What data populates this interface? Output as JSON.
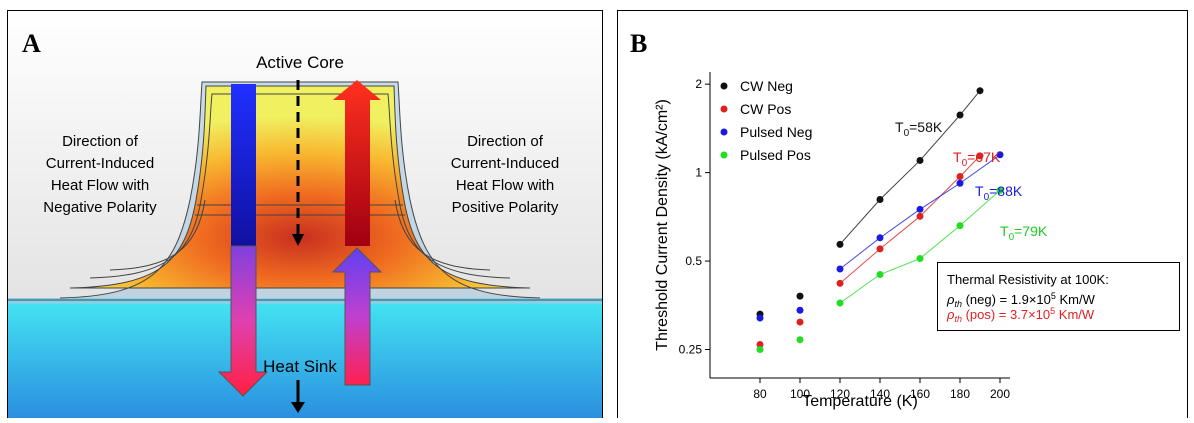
{
  "panel_a": {
    "label": "A",
    "top_label": "Active Core",
    "left_text": [
      "Direction of",
      "Current-Induced",
      "Heat Flow with",
      "Negative Polarity"
    ],
    "right_text": [
      "Direction of",
      "Current-Induced",
      "Heat Flow with",
      "Positive Polarity"
    ],
    "bottom_label": "Heat Sink"
  },
  "chart_data": {
    "type": "scatter",
    "panel_label": "B",
    "x_label": "Temperature (K)",
    "y_label": "Threshold Current Density (kA/cm²)",
    "xlim": [
      55,
      205
    ],
    "xticks": [
      80,
      100,
      120,
      140,
      160,
      180,
      200
    ],
    "ylim": [
      0.2,
      2.2
    ],
    "log_y": true,
    "yticks": [
      0.25,
      0.5,
      1,
      2
    ],
    "legend": "top-left",
    "series": [
      {
        "name": "CW Neg",
        "color": "#111111",
        "x": [
          80,
          100,
          120,
          140,
          160,
          180,
          190
        ],
        "values": [
          0.33,
          0.38,
          0.57,
          0.81,
          1.1,
          1.57,
          1.9
        ]
      },
      {
        "name": "CW Pos",
        "color": "#e02020",
        "x": [
          80,
          100,
          120,
          140,
          160,
          180,
          190
        ],
        "values": [
          0.26,
          0.31,
          0.42,
          0.55,
          0.71,
          0.97,
          1.14
        ]
      },
      {
        "name": "Pulsed Neg",
        "color": "#1a1ae0",
        "x": [
          80,
          100,
          120,
          140,
          160,
          180,
          200
        ],
        "values": [
          0.32,
          0.34,
          0.47,
          0.6,
          0.75,
          0.92,
          1.15
        ]
      },
      {
        "name": "Pulsed Pos",
        "color": "#22dd22",
        "x": [
          80,
          100,
          120,
          140,
          160,
          180,
          200
        ],
        "values": [
          0.25,
          0.27,
          0.36,
          0.45,
          0.51,
          0.66,
          0.87
        ]
      }
    ],
    "annotations": [
      {
        "base": "T",
        "sub": "0",
        "tail": "=58K",
        "color": "#111111"
      },
      {
        "base": "T",
        "sub": "0",
        "tail": "=67K",
        "color": "#e02020"
      },
      {
        "base": "T",
        "sub": "0",
        "tail": "=88K",
        "color": "#1a1ae0"
      },
      {
        "base": "T",
        "sub": "0",
        "tail": "=79K",
        "color": "#22cc22"
      }
    ],
    "note": {
      "title": "Thermal Resistivity at 100K:",
      "lines": [
        {
          "symbol": "ρ",
          "sub": "th",
          "text": " (neg) = 1.9×10",
          "sup": "5",
          "unit": " Km/W",
          "color": "#000000"
        },
        {
          "symbol": "ρ",
          "sub": "th",
          "text": " (pos) = 3.7×10",
          "sup": "5",
          "unit": " Km/W",
          "color": "#e02020"
        }
      ]
    }
  }
}
